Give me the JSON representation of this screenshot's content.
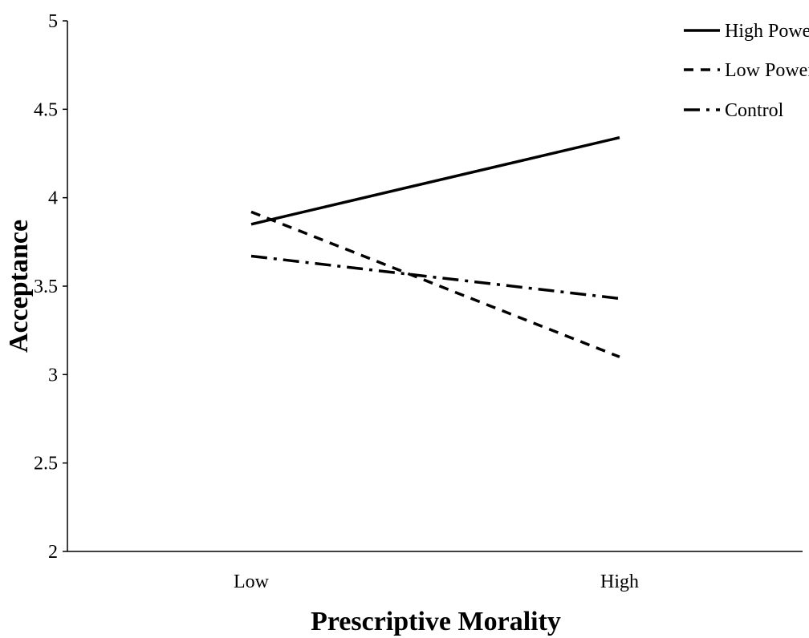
{
  "chart_data": {
    "type": "line",
    "xlabel": "Prescriptive Morality",
    "ylabel": "Acceptance",
    "categories": [
      "Low",
      "High"
    ],
    "ylim": [
      2,
      5
    ],
    "yticks": [
      "2",
      "2.5",
      "3",
      "3.5",
      "4",
      "4.5",
      "5"
    ],
    "grid": false,
    "legend_position": "top-right",
    "series": [
      {
        "name": "High Power",
        "values": [
          3.85,
          4.34
        ],
        "style": "solid",
        "color": "#000000"
      },
      {
        "name": "Low Power",
        "values": [
          3.92,
          3.1
        ],
        "style": "dashed",
        "color": "#000000"
      },
      {
        "name": "Control",
        "values": [
          3.67,
          3.43
        ],
        "style": "dash-dot",
        "color": "#000000"
      }
    ]
  }
}
